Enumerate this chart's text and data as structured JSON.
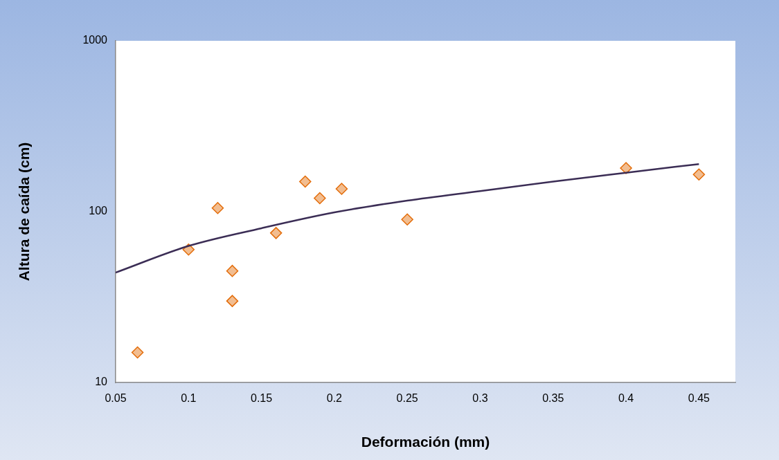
{
  "chart_data": {
    "type": "scatter",
    "xlabel": "Deformación (mm)",
    "ylabel": "Altura de caída (cm)",
    "log": "y",
    "marker": "diamond",
    "xlim": [
      0.05,
      0.475
    ],
    "xticks": [
      0.05,
      0.1,
      0.15,
      0.2,
      0.25,
      0.3,
      0.35,
      0.4,
      0.45
    ],
    "ylim": [
      10,
      1000
    ],
    "yticks": [
      10,
      100,
      1000
    ],
    "series": [
      {
        "color": "#e36c09",
        "x": [
          0.065,
          0.1,
          0.12,
          0.13,
          0.13,
          0.16,
          0.18,
          0.19,
          0.205,
          0.25,
          0.4,
          0.45
        ],
        "values": [
          15,
          60,
          105,
          45,
          30,
          75,
          150,
          120,
          136,
          90,
          180,
          165
        ]
      },
      {
        "type": "line",
        "color": "#3b2d55",
        "marker": "none",
        "x": [
          0.05,
          0.1,
          0.15,
          0.2,
          0.25,
          0.3,
          0.35,
          0.4,
          0.45
        ],
        "values": [
          44,
          63,
          80,
          99,
          116,
          132,
          150,
          169,
          190
        ]
      }
    ]
  }
}
